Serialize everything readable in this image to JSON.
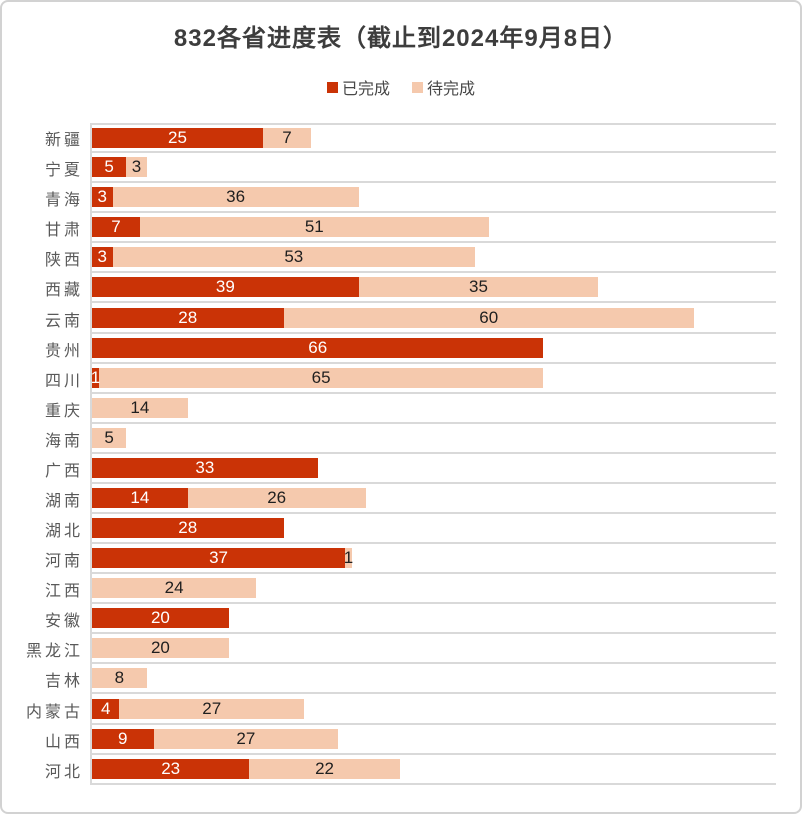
{
  "title": "832各省进度表（截止到2024年9月8日）",
  "legend": {
    "done_label": "已完成",
    "todo_label": "待完成"
  },
  "colors": {
    "done": "#ca3306",
    "todo": "#f5c9ad",
    "grid": "#d9d9d9",
    "category_text": "#595959",
    "title_text": "#3d3d3d"
  },
  "chart_data": {
    "type": "bar",
    "orientation": "horizontal",
    "stacked": true,
    "title": "832各省进度表（截止到2024年9月8日）",
    "xlabel": "",
    "ylabel": "",
    "xlim": [
      0,
      100
    ],
    "grid": "category-separators-only",
    "legend_position": "top-center",
    "categories": [
      "新疆",
      "宁夏",
      "青海",
      "甘肃",
      "陕西",
      "西藏",
      "云南",
      "贵州",
      "四川",
      "重庆",
      "海南",
      "广西",
      "湖南",
      "湖北",
      "河南",
      "江西",
      "安徽",
      "黑龙江",
      "吉林",
      "内蒙古",
      "山西",
      "河北"
    ],
    "series": [
      {
        "name": "已完成",
        "color": "#ca3306",
        "values": [
          25,
          5,
          3,
          7,
          3,
          39,
          28,
          66,
          1,
          0,
          0,
          33,
          14,
          28,
          37,
          0,
          20,
          0,
          0,
          4,
          9,
          23
        ]
      },
      {
        "name": "待完成",
        "color": "#f5c9ad",
        "values": [
          7,
          3,
          36,
          51,
          53,
          35,
          60,
          0,
          65,
          14,
          5,
          0,
          26,
          0,
          1,
          24,
          0,
          20,
          8,
          27,
          27,
          22
        ]
      }
    ]
  }
}
